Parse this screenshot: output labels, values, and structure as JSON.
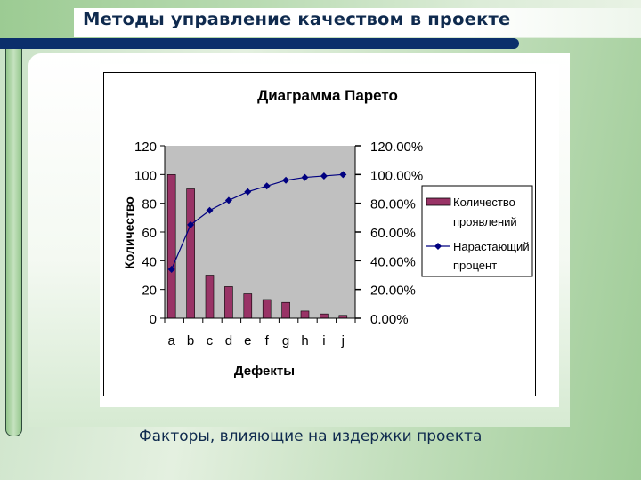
{
  "slide": {
    "title": "Методы управление качеством в проекте",
    "caption": "Факторы, влияющие на издержки проекта"
  },
  "colors": {
    "title_text": "#0f2a4e",
    "accent_bar": "#0b2f6b",
    "bar_fill": "#993366",
    "line": "#000080",
    "plot_bg": "#c0c0c0"
  },
  "chart_data": {
    "type": "bar+line",
    "title": "Диаграмма Парето",
    "xlabel": "Дефекты",
    "ylabel": "Количество",
    "categories": [
      "a",
      "b",
      "c",
      "d",
      "e",
      "f",
      "g",
      "h",
      "i",
      "j"
    ],
    "series": [
      {
        "name": "Количество проявлений",
        "type": "bar",
        "axis": "left",
        "values": [
          100,
          90,
          30,
          22,
          17,
          13,
          11,
          5,
          3,
          2
        ]
      },
      {
        "name": "Нарастающий процент",
        "type": "line",
        "axis": "right",
        "values": [
          34,
          65,
          75,
          82,
          88,
          92,
          96,
          98,
          99,
          100
        ]
      }
    ],
    "ylim": [
      0,
      120
    ],
    "y_ticks": [
      "0",
      "20",
      "40",
      "60",
      "80",
      "100",
      "120"
    ],
    "y2lim": [
      0,
      120
    ],
    "y2_ticks": [
      "0.00%",
      "20.00%",
      "40.00%",
      "60.00%",
      "80.00%",
      "100.00%",
      "120.00%"
    ],
    "legend": {
      "position": "right",
      "items": [
        {
          "line1": "Количество",
          "line2": "проявлений"
        },
        {
          "line1": "Нарастающий",
          "line2": "процент"
        }
      ]
    },
    "grid": false
  }
}
